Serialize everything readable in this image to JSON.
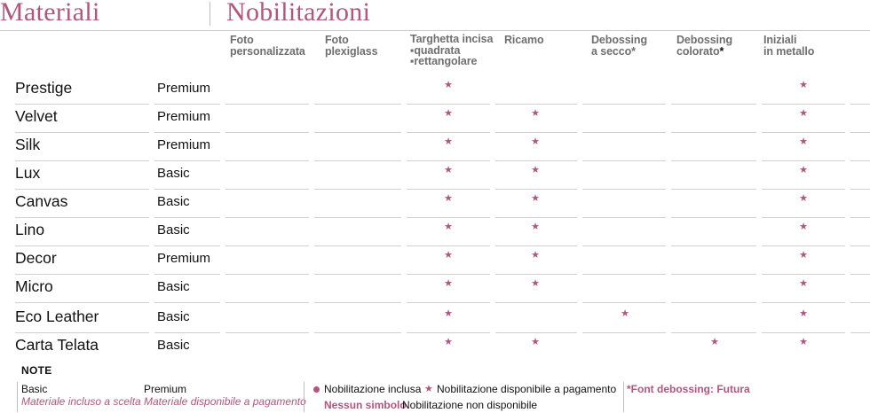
{
  "titles": {
    "materiali": "Materiali",
    "nobilitazioni": "Nobilitazioni"
  },
  "columns": [
    {
      "lines": [
        "Foto",
        "personalizzata"
      ]
    },
    {
      "lines": [
        "Foto",
        "plexiglass"
      ]
    },
    {
      "lines": [
        "Targhetta incisa",
        "▪quadrata",
        "▪rettangolare"
      ]
    },
    {
      "lines": [
        "Ricamo"
      ]
    },
    {
      "lines": [
        "Debossing",
        "a secco*"
      ]
    },
    {
      "lines": [
        "Debossing",
        "colorato"
      ],
      "suffix": "*"
    },
    {
      "lines": [
        "Iniziali",
        "in metallo"
      ]
    }
  ],
  "rows": [
    {
      "name": "Prestige",
      "tier": "Premium",
      "cells": [
        "",
        "",
        "star",
        "",
        "",
        "",
        "star"
      ]
    },
    {
      "name": "Velvet",
      "tier": "Premium",
      "cells": [
        "",
        "",
        "star",
        "star",
        "",
        "",
        "star"
      ]
    },
    {
      "name": "Silk",
      "tier": "Premium",
      "cells": [
        "",
        "",
        "star",
        "star",
        "",
        "",
        "star"
      ]
    },
    {
      "name": "Lux",
      "tier": "Basic",
      "cells": [
        "",
        "",
        "star",
        "star",
        "",
        "",
        "star"
      ]
    },
    {
      "name": "Canvas",
      "tier": "Basic",
      "cells": [
        "",
        "",
        "star",
        "star",
        "",
        "",
        "star"
      ]
    },
    {
      "name": "Lino",
      "tier": "Basic",
      "cells": [
        "",
        "",
        "star",
        "star",
        "",
        "",
        "star"
      ]
    },
    {
      "name": "Decor",
      "tier": "Premium",
      "cells": [
        "",
        "",
        "star",
        "star",
        "",
        "",
        "star"
      ]
    },
    {
      "name": "Micro",
      "tier": "Basic",
      "cells": [
        "",
        "",
        "star",
        "star",
        "",
        "",
        "star"
      ]
    },
    {
      "name": "Eco Leather",
      "tier": "Basic",
      "cells": [
        "",
        "",
        "star",
        "",
        "star",
        "",
        "star"
      ]
    },
    {
      "name": "Carta Telata",
      "tier": "Basic",
      "cells": [
        "",
        "",
        "star",
        "star",
        "",
        "star",
        "star"
      ]
    }
  ],
  "notes": {
    "label": "NOTE",
    "basic": {
      "title": "Basic",
      "desc": "Materiale incluso a scelta"
    },
    "premium": {
      "title": "Premium",
      "desc": "Materiale disponibile a pagamento"
    },
    "legend_included": "Nobilitazione inclusa",
    "legend_paid": "Nobilitazione disponibile a pagamento",
    "legend_none_bold": "Nessun simbolo",
    "legend_none": "Nobilitazione non disponibile",
    "font_note": "*Font debossing: Futura"
  },
  "icons": {
    "star": "★",
    "dot": "●"
  },
  "colors": {
    "accent": "#b3557c",
    "text": "#111111",
    "header_gray": "#6f6f6f",
    "rule": "#d0d0d0"
  }
}
